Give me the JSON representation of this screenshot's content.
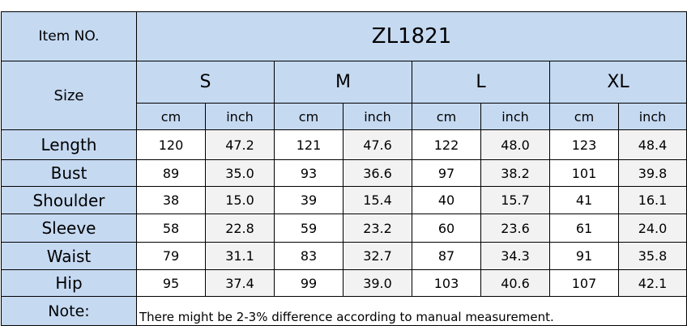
{
  "header": {
    "item_label": "Item NO.",
    "item_value": "ZL1821",
    "size_label": "Size",
    "sizes": [
      "S",
      "M",
      "L",
      "XL"
    ],
    "units": [
      "cm",
      "inch",
      "cm",
      "inch",
      "cm",
      "inch",
      "cm",
      "inch"
    ]
  },
  "table": {
    "rows": [
      {
        "label": "Length",
        "values": [
          "120",
          "47.2",
          "121",
          "47.6",
          "122",
          "48.0",
          "123",
          "48.4"
        ]
      },
      {
        "label": "Bust",
        "values": [
          "89",
          "35.0",
          "93",
          "36.6",
          "97",
          "38.2",
          "101",
          "39.8"
        ]
      },
      {
        "label": "Shoulder",
        "values": [
          "38",
          "15.0",
          "39",
          "15.4",
          "40",
          "15.7",
          "41",
          "16.1"
        ]
      },
      {
        "label": "Sleeve",
        "values": [
          "58",
          "22.8",
          "59",
          "23.2",
          "60",
          "23.6",
          "61",
          "24.0"
        ]
      },
      {
        "label": "Waist",
        "values": [
          "79",
          "31.1",
          "83",
          "32.7",
          "87",
          "34.3",
          "91",
          "35.8"
        ]
      },
      {
        "label": "Hip",
        "values": [
          "95",
          "37.4",
          "99",
          "39.0",
          "103",
          "40.6",
          "107",
          "42.1"
        ]
      }
    ]
  },
  "note": {
    "label": "Note:",
    "text": "There might be 2-3% difference according to manual measurement."
  }
}
